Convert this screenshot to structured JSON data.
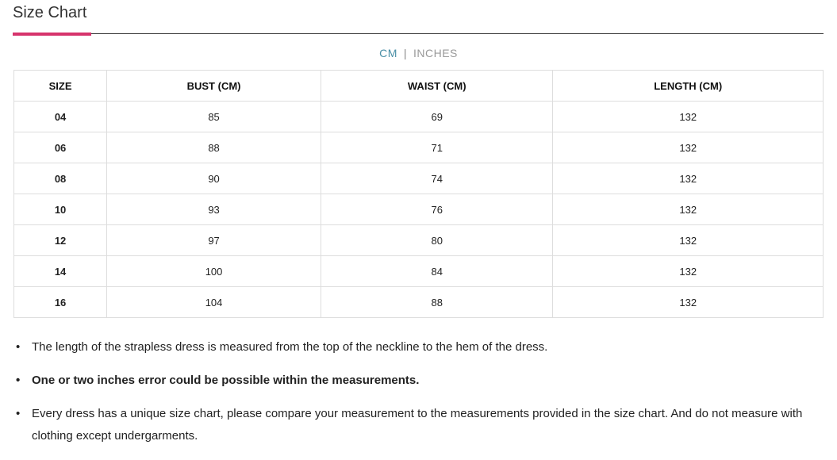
{
  "header": {
    "title": "Size Chart"
  },
  "unit_toggle": {
    "options": [
      "CM",
      "INCHES"
    ],
    "separator": "|"
  },
  "table": {
    "columns": [
      "SIZE",
      "BUST (CM)",
      "WAIST (CM)",
      "LENGTH (CM)"
    ],
    "rows": [
      [
        "04",
        "85",
        "69",
        "132"
      ],
      [
        "06",
        "88",
        "71",
        "132"
      ],
      [
        "08",
        "90",
        "74",
        "132"
      ],
      [
        "10",
        "93",
        "76",
        "132"
      ],
      [
        "12",
        "97",
        "80",
        "132"
      ],
      [
        "14",
        "100",
        "84",
        "132"
      ],
      [
        "16",
        "104",
        "88",
        "132"
      ]
    ]
  },
  "notes": [
    {
      "text": "The length of the strapless dress is measured from the top of the neckline to the hem of the dress.",
      "bold": false
    },
    {
      "text": "One or two inches error could be possible within the measurements.",
      "bold": true
    },
    {
      "text": "Every dress has a unique size chart, please compare your measurement to the measurements provided in the size chart. And do not measure with clothing except undergarments.",
      "bold": false
    }
  ]
}
